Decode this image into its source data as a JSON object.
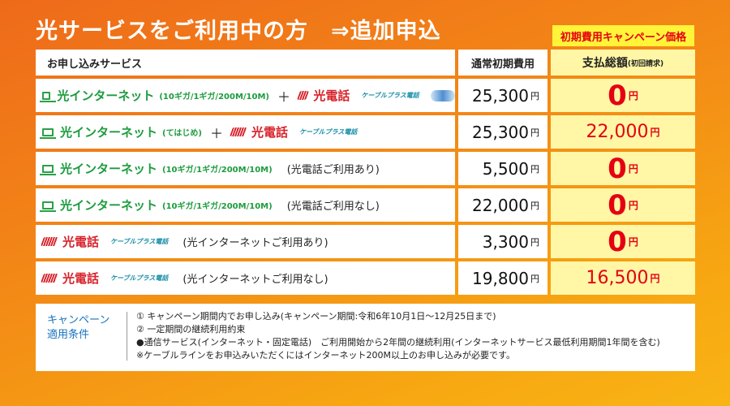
{
  "title": "光サービスをご利用中の方　⇒追加申込",
  "campaign_tag": "初期費用キャンペーン価格",
  "header": {
    "service": "お申し込みサービス",
    "normal_fee": "通常初期費用",
    "total_pay": "支払総額",
    "total_pay_sub": "(初回請求)"
  },
  "currency": "円",
  "rows": [
    {
      "internet": "光インターネット",
      "internet_sub": "(10ギガ/1ギガ/200M/10M)",
      "plus": "＋",
      "tel": "光電話",
      "cable_plus": "ケーブルプラス電話",
      "note": "",
      "normal": "25,300",
      "pay": "0"
    },
    {
      "internet": "光インターネット",
      "internet_sub": "(てはじめ)",
      "plus": "＋",
      "tel": "光電話",
      "cable_plus": "ケーブルプラス電話",
      "note": "",
      "normal": "25,300",
      "pay": "22,000"
    },
    {
      "internet": "光インターネット",
      "internet_sub": "(10ギガ/1ギガ/200M/10M)",
      "plus": "",
      "tel": "",
      "cable_plus": "",
      "note": "(光電話ご利用あり)",
      "normal": "5,500",
      "pay": "0"
    },
    {
      "internet": "光インターネット",
      "internet_sub": "(10ギガ/1ギガ/200M/10M)",
      "plus": "",
      "tel": "",
      "cable_plus": "",
      "note": "(光電話ご利用なし)",
      "normal": "22,000",
      "pay": "0"
    },
    {
      "internet": "",
      "internet_sub": "",
      "plus": "",
      "tel": "光電話",
      "cable_plus": "ケーブルプラス電話",
      "note": "(光インターネットご利用あり)",
      "normal": "3,300",
      "pay": "0"
    },
    {
      "internet": "",
      "internet_sub": "",
      "plus": "",
      "tel": "光電話",
      "cable_plus": "ケーブルプラス電話",
      "note": "(光インターネットご利用なし)",
      "normal": "19,800",
      "pay": "16,500"
    }
  ],
  "conditions": {
    "title_line1": "キャンペーン",
    "title_line2": "適用条件",
    "lines": [
      "① キャンペーン期間内でお申し込み(キャンペーン期間:令和6年10月1日〜12月25日まで)",
      "② 一定期間の継続利用約束",
      "●通信サービス(インターネット・固定電話)　ご利用開始から2年間の継続利用(インターネットサービス最低利用期間1年間を含む)",
      "※ケーブルラインをお申込みいただくにはインターネット200M以上のお申し込みが必要です。"
    ]
  }
}
